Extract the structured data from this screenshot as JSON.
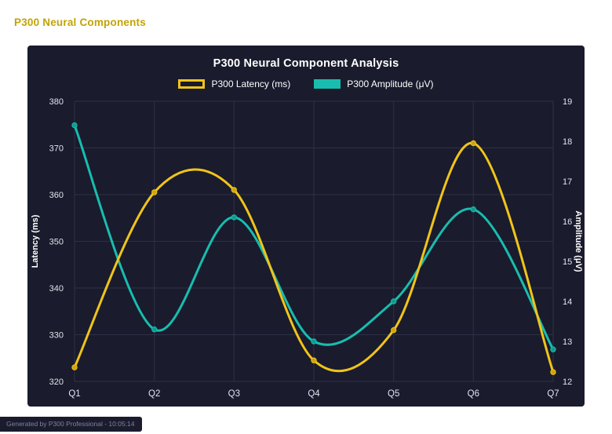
{
  "page": {
    "heading": "P300 Neural Components",
    "footer": "Generated by P300 Professional - 10:05:14",
    "colors": {
      "heading": "#c2a305",
      "panel_background": "#1a1b2d",
      "footer_background": "#1a1b2d"
    }
  },
  "chart_data": {
    "type": "line",
    "title": "P300 Neural Component Analysis",
    "categories": [
      "Q1",
      "Q2",
      "Q3",
      "Q4",
      "Q5",
      "Q6",
      "Q7"
    ],
    "series": [
      {
        "id": "latency",
        "name": "P300 Latency (ms)",
        "axis": "left",
        "color": "#f0c419",
        "point_color": "#cfa40c",
        "values": [
          323,
          360.5,
          361,
          324.5,
          331,
          371,
          322
        ]
      },
      {
        "id": "amplitude",
        "name": "P300 Amplitude (μV)",
        "axis": "right",
        "color": "#18bdae",
        "point_color": "#109b90",
        "values": [
          18.4,
          13.3,
          16.1,
          13.0,
          14.0,
          16.3,
          12.8
        ]
      }
    ],
    "left_axis": {
      "label": "Latency (ms)",
      "min": 320,
      "max": 380,
      "step": 10
    },
    "right_axis": {
      "label": "Amplitude (μV)",
      "min": 12,
      "max": 19,
      "step": 1
    },
    "grid": true,
    "legend_position": "top",
    "grid_color": "#2e3048",
    "tick_text_color": "#e2e3ec",
    "axis_title_color": "#ffffff",
    "background": "#1a1b2d"
  }
}
